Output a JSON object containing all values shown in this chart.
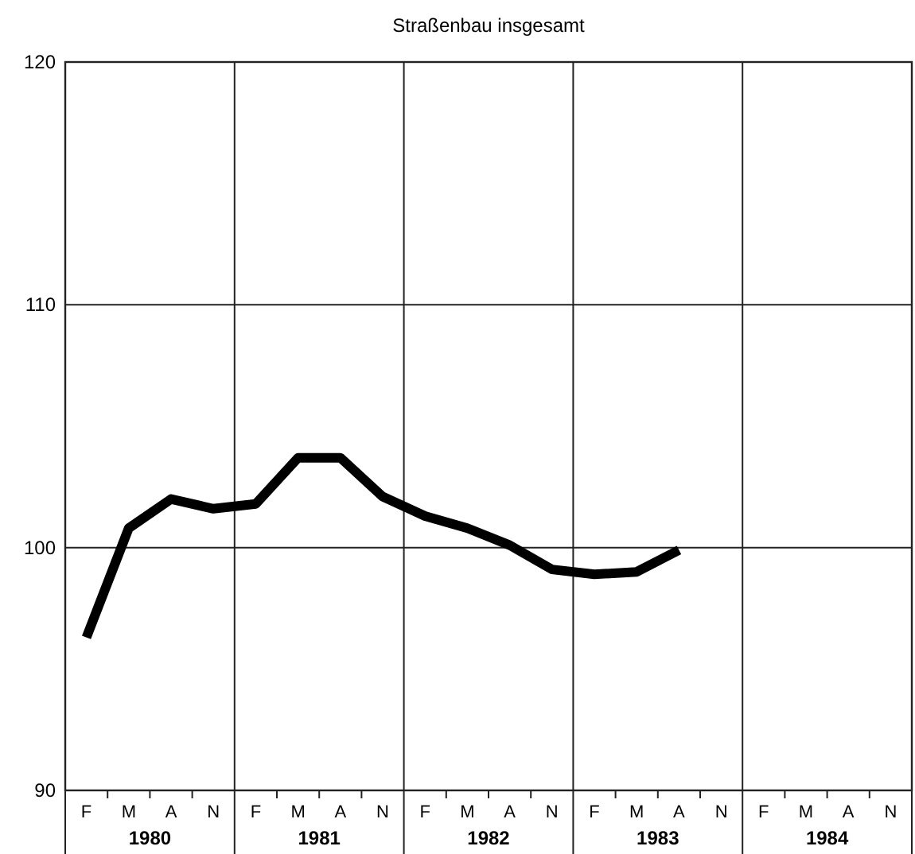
{
  "chart_data": {
    "type": "line",
    "title": "Straßenbau insgesamt",
    "categories": [
      "F",
      "M",
      "A",
      "N",
      "F",
      "M",
      "A",
      "N",
      "F",
      "M",
      "A",
      "N",
      "F",
      "M",
      "A",
      "N",
      "F",
      "M",
      "A",
      "N"
    ],
    "series": [
      {
        "color": "#000000",
        "values": [
          96.3,
          100.8,
          102.0,
          101.6,
          101.8,
          103.7,
          103.7,
          102.1,
          101.3,
          100.8,
          100.1,
          99.1,
          98.9,
          99.0,
          99.9,
          null,
          null,
          null,
          null,
          null
        ]
      }
    ],
    "annotations": [
      "1980",
      "1981",
      "1982",
      "1983",
      "1984"
    ],
    "ylim": [
      90,
      120
    ],
    "yticks": [
      90,
      100,
      110,
      120
    ],
    "grid": true,
    "marker": "none",
    "line_style": "solid"
  }
}
